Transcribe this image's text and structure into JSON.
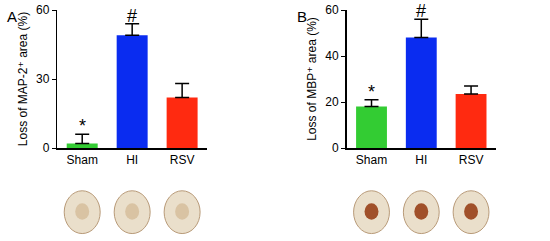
{
  "chart_data": [
    {
      "type": "bar",
      "title": "A",
      "y_label": "Loss of MAP-2⁺ area (%)",
      "categories": [
        "Sham",
        "HI",
        "RSV"
      ],
      "values": [
        2,
        49,
        22
      ],
      "errors": [
        4,
        5,
        6
      ],
      "colors": [
        "#33cc33",
        "#0a2cf0",
        "#ff2a10"
      ],
      "ylim": [
        0,
        60
      ],
      "yticks": [
        0,
        30,
        60
      ],
      "annotations": [
        {
          "category": "Sham",
          "text": "*"
        },
        {
          "category": "HI",
          "text": "#"
        }
      ]
    },
    {
      "type": "bar",
      "title": "B",
      "y_label": "Loss of MBP⁺ area (%)",
      "categories": [
        "Sham",
        "HI",
        "RSV"
      ],
      "values": [
        18,
        48,
        23.5
      ],
      "errors": [
        3,
        8,
        3.5
      ],
      "colors": [
        "#33cc33",
        "#0a2cf0",
        "#ff2a10"
      ],
      "ylim": [
        0,
        60
      ],
      "yticks": [
        0,
        20,
        40,
        60
      ],
      "annotations": [
        {
          "category": "Sham",
          "text": "*"
        },
        {
          "category": "HI",
          "text": "#"
        }
      ]
    }
  ]
}
